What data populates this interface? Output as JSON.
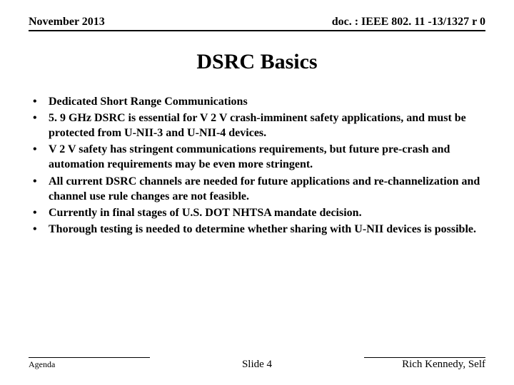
{
  "header": {
    "date": "November 2013",
    "doc": "doc. : IEEE 802. 11 -13/1327 r 0"
  },
  "title": "DSRC Basics",
  "bullets": [
    "Dedicated Short Range Communications",
    "5. 9 GHz DSRC is essential for V 2 V crash-imminent safety applications, and must be protected from U-NII-3 and U-NII-4 devices.",
    "V 2 V safety has stringent communications requirements, but future pre-crash and automation requirements may be even more stringent.",
    "All current DSRC channels are needed for future applications and re-channelization and channel use rule changes are not feasible.",
    "Currently in final stages of U.S. DOT NHTSA mandate decision.",
    "Thorough testing is needed to determine whether sharing with U-NII devices is possible."
  ],
  "footer": {
    "left": "Agenda",
    "center": "Slide 4",
    "right": "Rich Kennedy, Self"
  }
}
